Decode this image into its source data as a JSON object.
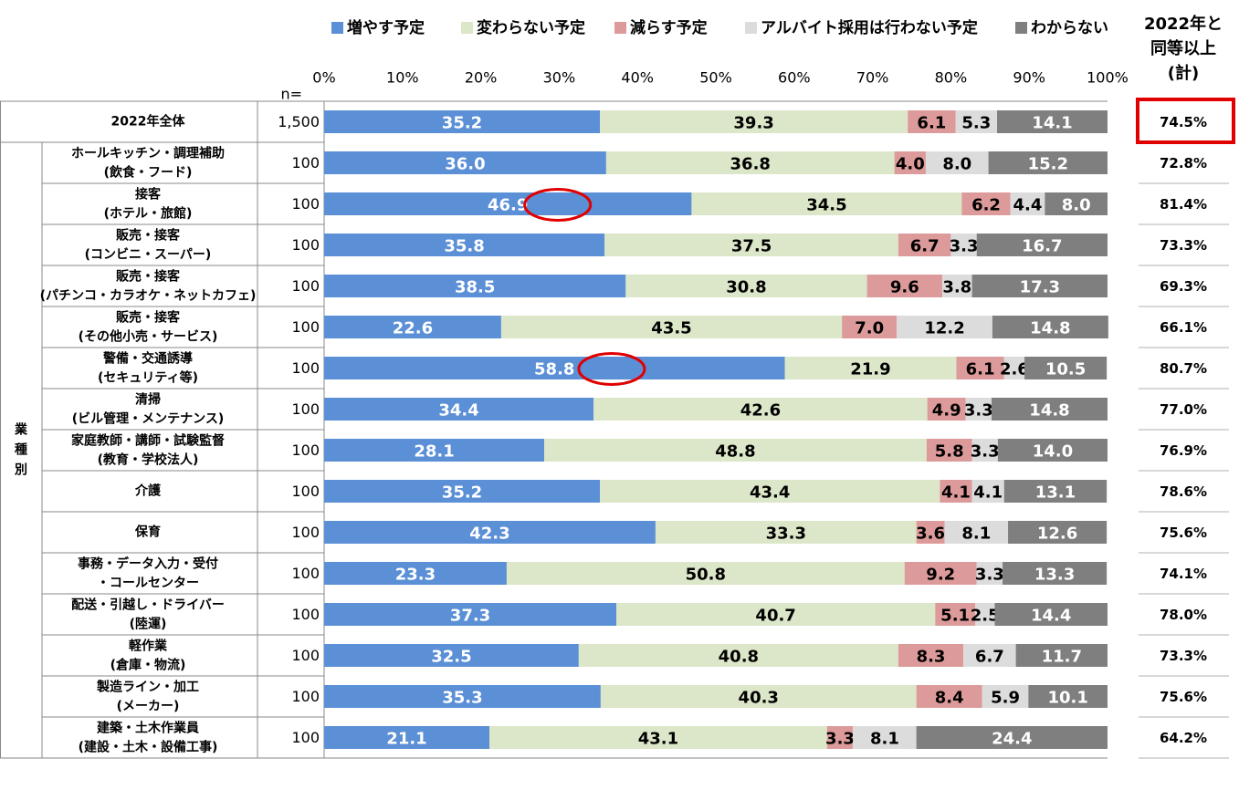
{
  "chart_data": {
    "type": "bar",
    "orientation": "horizontal",
    "stacked": true,
    "percent_stacked": true,
    "n_label": "n=",
    "xlim": [
      0,
      100
    ],
    "x_ticks": [
      "0%",
      "10%",
      "20%",
      "30%",
      "40%",
      "50%",
      "60%",
      "70%",
      "80%",
      "90%",
      "100%"
    ],
    "legend": [
      {
        "name": "増やす予定",
        "color": "#5b8fd6"
      },
      {
        "name": "変わらない予定",
        "color": "#dce6c8"
      },
      {
        "name": "減らす予定",
        "color": "#dd9a9a"
      },
      {
        "name": "アルバイト採用は行わない予定",
        "color": "#dcdcdc"
      },
      {
        "name": "わからない",
        "color": "#7f7f7f"
      }
    ],
    "right_column_header": [
      "2022年と",
      "同等以上",
      "(計)"
    ],
    "group_label": "業種別",
    "group_label_chars": [
      "業",
      "種",
      "別"
    ],
    "total_row": {
      "label": [
        "2022年全体"
      ],
      "n": "1,500",
      "values": [
        35.2,
        39.3,
        6.1,
        5.3,
        14.1
      ],
      "labels": [
        "35.2",
        "39.3",
        "6.1",
        "5.3",
        "14.1"
      ],
      "right": "74.5%",
      "right_highlight": true
    },
    "rows": [
      {
        "label": [
          "ホールキッチン・調理補助",
          "(飲食・フード)"
        ],
        "n": "100",
        "values": [
          36.0,
          36.8,
          4.0,
          8.0,
          15.2
        ],
        "labels": [
          "36.0",
          "36.8",
          "4.0",
          "8.0",
          "15.2"
        ],
        "right": "72.8%"
      },
      {
        "label": [
          "接客",
          "(ホテル・旅館)"
        ],
        "n": "100",
        "values": [
          46.9,
          34.5,
          6.2,
          4.4,
          8.0
        ],
        "labels": [
          "46.9",
          "34.5",
          "6.2",
          "4.4",
          "8.0"
        ],
        "right": "81.4%",
        "circled": true
      },
      {
        "label": [
          "販売・接客",
          "(コンビニ・スーパー)"
        ],
        "n": "100",
        "values": [
          35.8,
          37.5,
          6.7,
          3.3,
          16.7
        ],
        "labels": [
          "35.8",
          "37.5",
          "6.7",
          "3.3",
          "16.7"
        ],
        "right": "73.3%"
      },
      {
        "label": [
          "販売・接客",
          "(パチンコ・カラオケ・ネットカフェ)"
        ],
        "n": "100",
        "values": [
          38.5,
          30.8,
          9.6,
          3.8,
          17.3
        ],
        "labels": [
          "38.5",
          "30.8",
          "9.6",
          "3.8",
          "17.3"
        ],
        "right": "69.3%"
      },
      {
        "label": [
          "販売・接客",
          "(その他小売・サービス)"
        ],
        "n": "100",
        "values": [
          22.6,
          43.5,
          7.0,
          12.2,
          14.8
        ],
        "labels": [
          "22.6",
          "43.5",
          "7.0",
          "12.2",
          "14.8"
        ],
        "right": "66.1%"
      },
      {
        "label": [
          "警備・交通誘導",
          "(セキュリティ等)"
        ],
        "n": "100",
        "values": [
          58.8,
          21.9,
          6.1,
          2.6,
          10.5
        ],
        "labels": [
          "58.8",
          "21.9",
          "6.1",
          "2.6",
          "10.5"
        ],
        "right": "80.7%",
        "circled": true
      },
      {
        "label": [
          "清掃",
          "(ビル管理・メンテナンス)"
        ],
        "n": "100",
        "values": [
          34.4,
          42.6,
          4.9,
          3.3,
          14.8
        ],
        "labels": [
          "34.4",
          "42.6",
          "4.9",
          "3.3",
          "14.8"
        ],
        "right": "77.0%"
      },
      {
        "label": [
          "家庭教師・講師・試験監督",
          "(教育・学校法人)"
        ],
        "n": "100",
        "values": [
          28.1,
          48.8,
          5.8,
          3.3,
          14.0
        ],
        "labels": [
          "28.1",
          "48.8",
          "5.8",
          "3.3",
          "14.0"
        ],
        "right": "76.9%"
      },
      {
        "label": [
          "介護"
        ],
        "n": "100",
        "values": [
          35.2,
          43.4,
          4.1,
          4.1,
          13.1
        ],
        "labels": [
          "35.2",
          "43.4",
          "4.1",
          "4.1",
          "13.1"
        ],
        "right": "78.6%"
      },
      {
        "label": [
          "保育"
        ],
        "n": "100",
        "values": [
          42.3,
          33.3,
          3.6,
          8.1,
          12.6
        ],
        "labels": [
          "42.3",
          "33.3",
          "3.6",
          "8.1",
          "12.6"
        ],
        "right": "75.6%"
      },
      {
        "label": [
          "事務・データ入力・受付",
          "・コールセンター"
        ],
        "n": "100",
        "values": [
          23.3,
          50.8,
          9.2,
          3.3,
          13.3
        ],
        "labels": [
          "23.3",
          "50.8",
          "9.2",
          "3.3",
          "13.3"
        ],
        "right": "74.1%"
      },
      {
        "label": [
          "配送・引越し・ドライバー",
          "(陸運)"
        ],
        "n": "100",
        "values": [
          37.3,
          40.7,
          5.1,
          2.5,
          14.4
        ],
        "labels": [
          "37.3",
          "40.7",
          "5.1",
          "2.5",
          "14.4"
        ],
        "right": "78.0%"
      },
      {
        "label": [
          "軽作業",
          "(倉庫・物流)"
        ],
        "n": "100",
        "values": [
          32.5,
          40.8,
          8.3,
          6.7,
          11.7
        ],
        "labels": [
          "32.5",
          "40.8",
          "8.3",
          "6.7",
          "11.7"
        ],
        "right": "73.3%"
      },
      {
        "label": [
          "製造ライン・加工",
          "(メーカー)"
        ],
        "n": "100",
        "values": [
          35.3,
          40.3,
          8.4,
          5.9,
          10.1
        ],
        "labels": [
          "35.3",
          "40.3",
          "8.4",
          "5.9",
          "10.1"
        ],
        "right": "75.6%"
      },
      {
        "label": [
          "建築・土木作業員",
          "(建設・土木・設備工事)"
        ],
        "n": "100",
        "values": [
          21.1,
          43.1,
          3.3,
          8.1,
          24.4
        ],
        "labels": [
          "21.1",
          "43.1",
          "3.3",
          "8.1",
          "24.4"
        ],
        "right": "64.2%"
      }
    ]
  }
}
